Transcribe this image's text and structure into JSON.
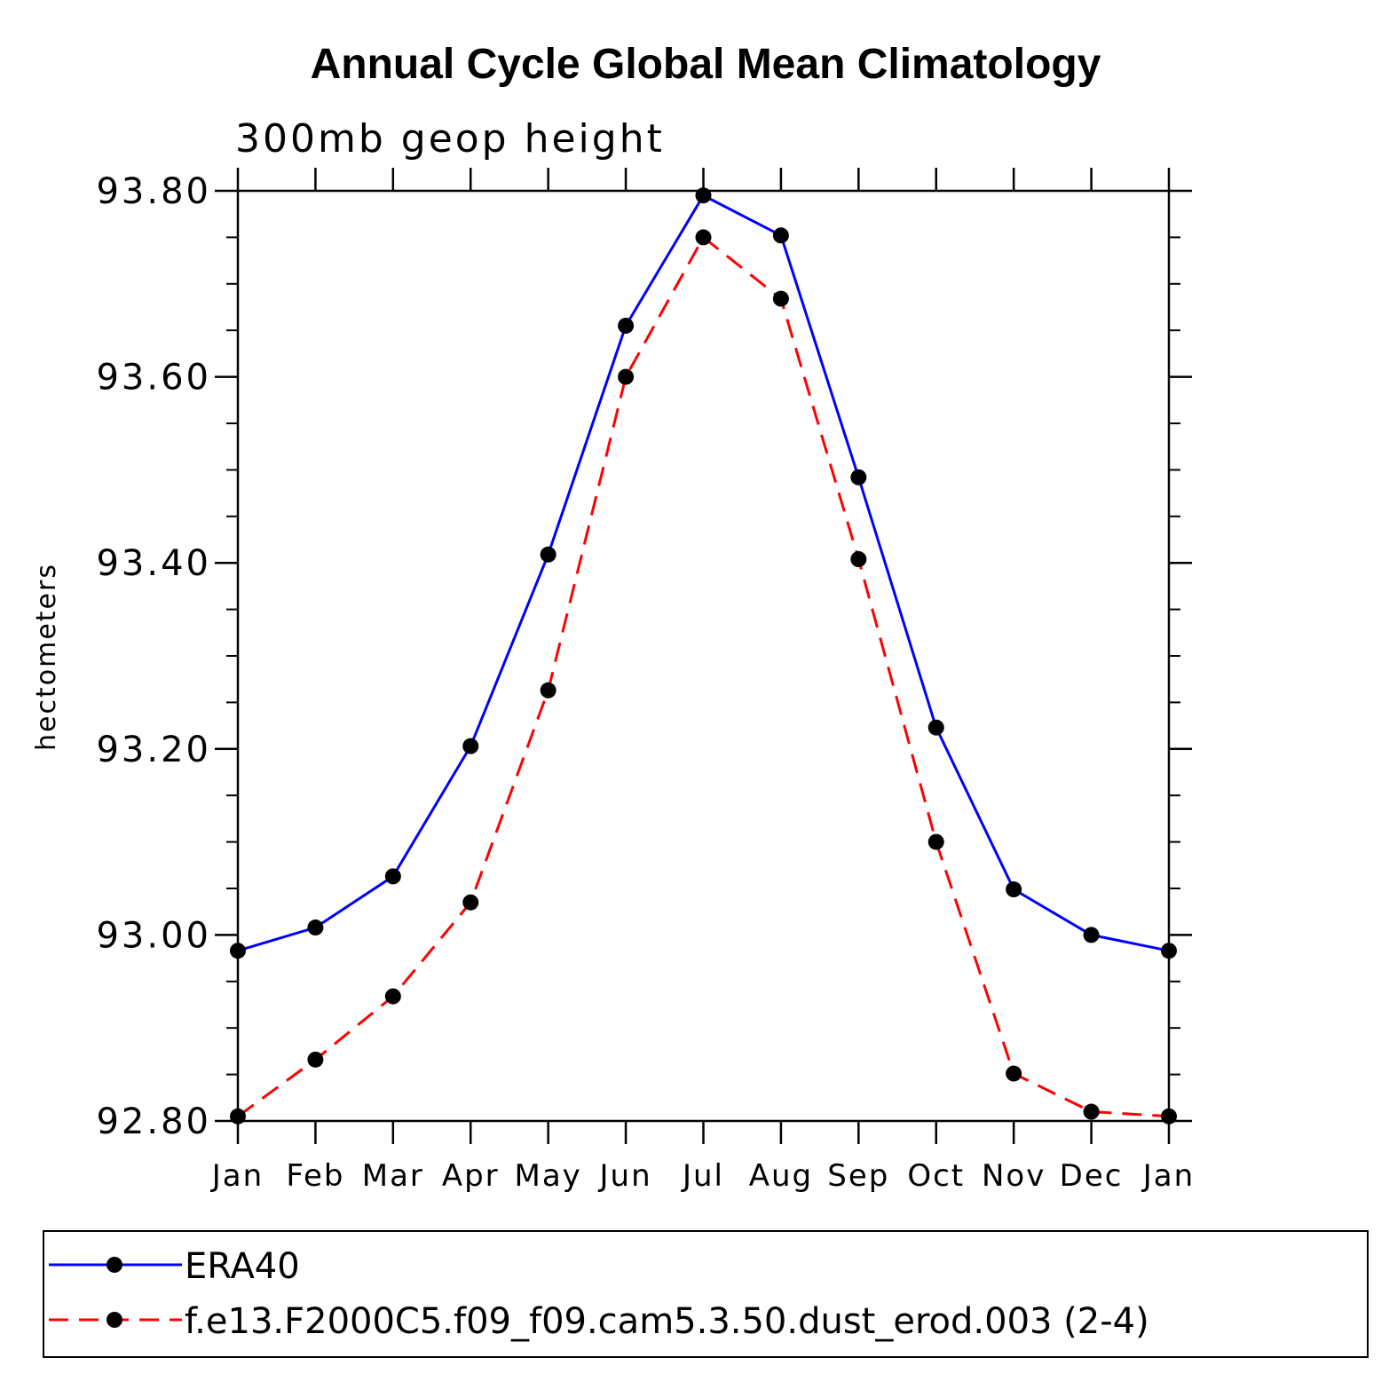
{
  "chart_data": {
    "type": "line",
    "title": "Annual Cycle Global Mean Climatology",
    "subtitle": "300mb geop height",
    "ylabel": "hectometers",
    "xlabel": "",
    "categories": [
      "Jan",
      "Feb",
      "Mar",
      "Apr",
      "May",
      "Jun",
      "Jul",
      "Aug",
      "Sep",
      "Oct",
      "Nov",
      "Dec",
      "Jan"
    ],
    "ylim": [
      92.8,
      93.8
    ],
    "yticks": [
      "92.80",
      "93.00",
      "93.20",
      "93.40",
      "93.60",
      "93.80"
    ],
    "ytick_values": [
      92.8,
      93.0,
      93.2,
      93.4,
      93.6,
      93.8
    ],
    "yminor_step": 0.05,
    "grid": false,
    "legend_position": "bottom",
    "series": [
      {
        "name": "ERA40",
        "color": "#0000ff",
        "dash": "solid",
        "marker": "dot",
        "values": [
          92.983,
          93.008,
          93.063,
          93.203,
          93.409,
          93.655,
          93.795,
          93.752,
          93.492,
          93.223,
          93.049,
          93.0,
          92.983
        ]
      },
      {
        "name": "f.e13.F2000C5.f09_f09.cam5.3.50.dust_erod.003 (2-4)",
        "color": "#ff0000",
        "dash": "dashed",
        "marker": "dot",
        "values": [
          92.805,
          92.866,
          92.934,
          93.035,
          93.263,
          93.6,
          93.75,
          93.684,
          93.404,
          93.1,
          92.851,
          92.81,
          92.805
        ]
      }
    ]
  }
}
